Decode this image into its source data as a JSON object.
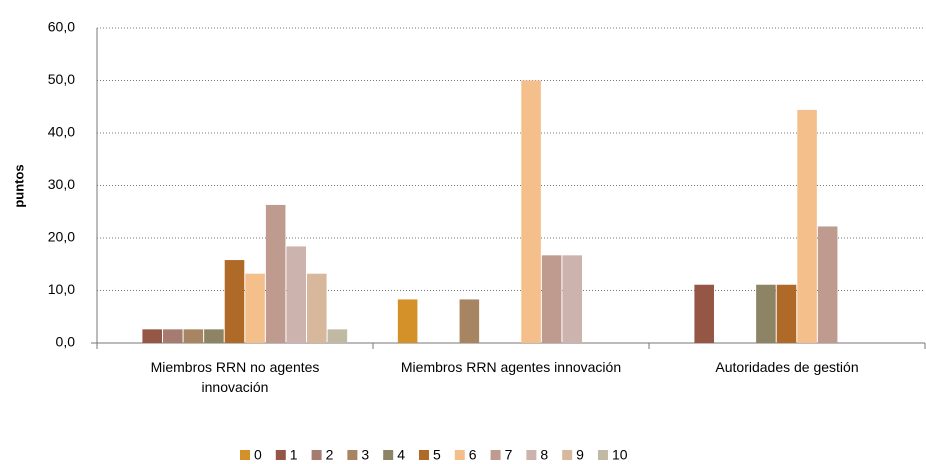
{
  "chart_data": {
    "type": "bar",
    "ylabel": "puntos",
    "categories": [
      "Miembros RRN no agentes innovación",
      "Miembros RRN agentes innovación",
      "Autoridades de gestión"
    ],
    "series": [
      {
        "name": "0",
        "color": "#d4912a",
        "values": [
          0,
          8.3,
          0
        ]
      },
      {
        "name": "1",
        "color": "#955645",
        "values": [
          2.6,
          0,
          11.1
        ]
      },
      {
        "name": "2",
        "color": "#a67b70",
        "values": [
          2.6,
          0,
          0
        ]
      },
      {
        "name": "3",
        "color": "#a88562",
        "values": [
          2.6,
          8.3,
          0
        ]
      },
      {
        "name": "4",
        "color": "#8c8465",
        "values": [
          2.6,
          0,
          11.1
        ]
      },
      {
        "name": "5",
        "color": "#b06a28",
        "values": [
          15.8,
          0,
          11.1
        ]
      },
      {
        "name": "6",
        "color": "#f5bf8c",
        "values": [
          13.2,
          50,
          44.4
        ]
      },
      {
        "name": "7",
        "color": "#bf9a8f",
        "values": [
          26.3,
          16.7,
          22.2
        ]
      },
      {
        "name": "8",
        "color": "#cdb3ad",
        "values": [
          18.4,
          16.7,
          0
        ]
      },
      {
        "name": "9",
        "color": "#d7b89c",
        "values": [
          13.2,
          0,
          0
        ]
      },
      {
        "name": "10",
        "color": "#c0baa5",
        "values": [
          2.6,
          0,
          0
        ]
      }
    ],
    "ylim": [
      0,
      60
    ],
    "yticks": [
      {
        "value": 0,
        "label": "0,0"
      },
      {
        "value": 10,
        "label": "10,0"
      },
      {
        "value": 20,
        "label": "20,0"
      },
      {
        "value": 30,
        "label": "30,0"
      },
      {
        "value": 40,
        "label": "40,0"
      },
      {
        "value": 50,
        "label": "50,0"
      },
      {
        "value": 60,
        "label": "60,0"
      }
    ],
    "grid": true
  }
}
